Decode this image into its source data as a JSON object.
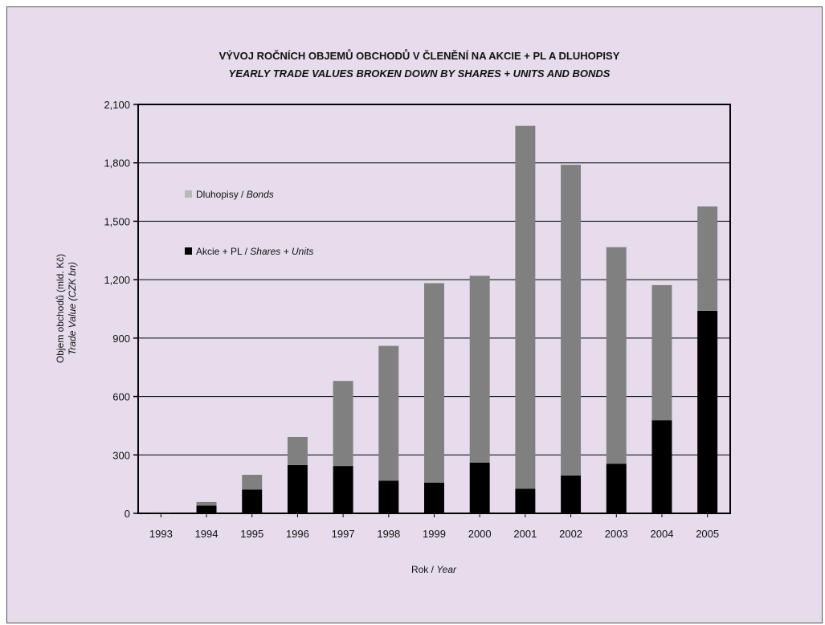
{
  "chart_data": {
    "type": "bar",
    "stacked": true,
    "title": "VÝVOJ ROČNÍCH OBJEMŮ OBCHODŮ V ČLENĚNÍ NA AKCIE + PL A DLUHOPISY",
    "subtitle": "YEARLY TRADE VALUES BROKEN DOWN BY SHARES + UNITS AND BONDS",
    "xlabel": "Rok",
    "xlabel_en": "Year",
    "ylabel": "Objem obchodů (mld. Kč)",
    "ylabel_en": "Trade Value (CZK bn)",
    "ylim": [
      0,
      2100
    ],
    "yticks": [
      "0",
      "300",
      "600",
      "900",
      "1,200",
      "1,500",
      "1,800",
      "2,100"
    ],
    "ytick_values": [
      0,
      300,
      600,
      900,
      1200,
      1500,
      1800,
      2100
    ],
    "grid": true,
    "legend_position": "top-left",
    "categories": [
      "1993",
      "1994",
      "1995",
      "1996",
      "1997",
      "1998",
      "1999",
      "2000",
      "2001",
      "2002",
      "2003",
      "2004",
      "2005"
    ],
    "series": [
      {
        "name": "Akcie + PL",
        "name_en": "Shares + Units",
        "color": "#000000",
        "values": [
          3,
          40,
          122,
          248,
          243,
          168,
          158,
          260,
          126,
          194,
          255,
          478,
          1040
        ]
      },
      {
        "name": "Dluhopisy",
        "name_en": "Bonds",
        "color": "#808080",
        "values": [
          2,
          18,
          76,
          144,
          437,
          692,
          1024,
          960,
          1864,
          1596,
          1112,
          694,
          536
        ]
      }
    ]
  },
  "legend": {
    "bonds": {
      "label": "Dluhopisy",
      "label_sep": " / ",
      "label_en": "Bonds",
      "swatch_color": "#b8b8b8"
    },
    "shares": {
      "label": "Akcie + PL",
      "label_sep": " / ",
      "label_en": "Shares + Units",
      "swatch_color": "#000000"
    }
  },
  "axis_sep": " / "
}
